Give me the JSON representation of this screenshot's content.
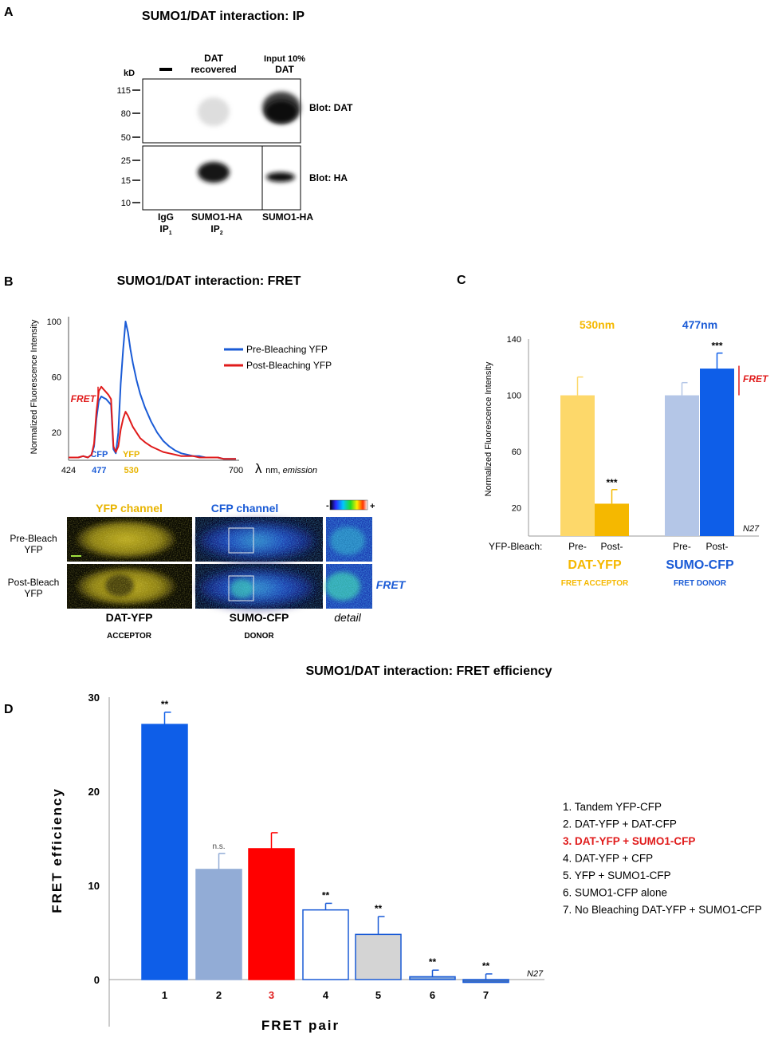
{
  "panelA": {
    "letter": "A",
    "title": "SUMO1/DAT interaction: IP",
    "kd_label": "kD",
    "dash_label": "—",
    "col_headers": [
      {
        "lines": [
          "DAT",
          "recovered"
        ]
      },
      {
        "lines": [
          "Input 10%",
          "DAT"
        ]
      }
    ],
    "top_ladder": [
      "115",
      "80",
      "50"
    ],
    "bottom_ladder": [
      "25",
      "15",
      "10"
    ],
    "blot_labels": [
      "Blot: DAT",
      "Blot: HA"
    ],
    "lane_labels": [
      {
        "line1": "IgG",
        "line2": "IP",
        "sub": "1"
      },
      {
        "line1": "SUMO1-HA",
        "line2": "IP",
        "sub": "2"
      },
      {
        "line1": "SUMO1-HA",
        "line2": "",
        "sub": ""
      }
    ]
  },
  "panelB": {
    "letter": "B",
    "title": "SUMO1/DAT interaction: FRET",
    "chart_data": {
      "type": "line",
      "ylabel": "Normalized Fluorescence Intensity",
      "xlabel_symbol": "λ",
      "xlabel_unit": "nm,",
      "xlabel_emph": "emission",
      "y_ticks": [
        "100",
        "60",
        "20"
      ],
      "x_ticks": [
        "424",
        "700"
      ],
      "marker_labels": [
        {
          "name": "CFP",
          "value": "477",
          "color": "#1a5bd6"
        },
        {
          "name": "YFP",
          "value": "530",
          "color": "#e8b400"
        }
      ],
      "annotation": "FRET",
      "x": [
        424,
        432,
        440,
        448,
        456,
        462,
        466,
        470,
        474,
        478,
        482,
        486,
        490,
        494,
        498,
        502,
        506,
        510,
        514,
        518,
        522,
        526,
        530,
        536,
        542,
        550,
        560,
        570,
        580,
        590,
        600,
        610,
        620,
        630,
        640,
        650,
        660,
        670,
        680,
        690,
        700
      ],
      "series": [
        {
          "name": "Pre-Bleaching YFP",
          "color": "#1a5bd6",
          "values": [
            2,
            2,
            2,
            3,
            2,
            4,
            10,
            30,
            43,
            46,
            45,
            44,
            42,
            40,
            8,
            5,
            20,
            55,
            80,
            100,
            92,
            80,
            70,
            58,
            48,
            38,
            28,
            20,
            14,
            10,
            7,
            5,
            4,
            3,
            3,
            2,
            2,
            2,
            1,
            1,
            1
          ]
        },
        {
          "name": "Post-Bleaching YFP",
          "color": "#e01b1b",
          "values": [
            2,
            2,
            2,
            3,
            2,
            4,
            12,
            35,
            50,
            53,
            51,
            49,
            47,
            44,
            10,
            6,
            10,
            22,
            30,
            35,
            32,
            28,
            24,
            20,
            16,
            13,
            10,
            8,
            6,
            5,
            4,
            3,
            3,
            3,
            2,
            2,
            2,
            2,
            1,
            1,
            1
          ]
        }
      ]
    },
    "channels": {
      "yfp_title": "YFP channel",
      "cfp_title": "CFP channel",
      "scale_minus": "-",
      "scale_plus": "+",
      "rows": [
        {
          "line1": "Pre-Bleach",
          "line2": "YFP"
        },
        {
          "line1": "Post-Bleach",
          "line2": "YFP"
        }
      ],
      "fret_label": "FRET",
      "captions": [
        {
          "main": "DAT-YFP",
          "sub": "ACCEPTOR"
        },
        {
          "main": "SUMO-CFP",
          "sub": "DONOR"
        },
        {
          "main": "detail",
          "sub": ""
        }
      ]
    }
  },
  "panelC": {
    "letter": "C",
    "chart_data": {
      "type": "bar",
      "ylabel": "Normalized Fluorescence Intensity",
      "ylim": [
        0,
        140
      ],
      "y_ticks": [
        20,
        60,
        100,
        140
      ],
      "wavelengths": [
        {
          "label": "530nm",
          "color": "#f5b800"
        },
        {
          "label": "477nm",
          "color": "#1a5bd6"
        }
      ],
      "bleach_label": "YFP-Bleach:",
      "categories": [
        "Pre-",
        "Post-",
        "Pre-",
        "Post-"
      ],
      "values": [
        100,
        23,
        100,
        119
      ],
      "errors": [
        13,
        10,
        9,
        11
      ],
      "colors": [
        "#fdd86a",
        "#f5b800",
        "#b4c6e7",
        "#0e5ee8"
      ],
      "error_colors": [
        "#fdd86a",
        "#f5b800",
        "#b4c6e7",
        "#0e5ee8"
      ],
      "significance": [
        "",
        "***",
        "",
        "***"
      ],
      "groups": [
        {
          "name": "DAT-YFP",
          "sub": "FRET ACCEPTOR",
          "color": "#f5b800"
        },
        {
          "name": "SUMO-CFP",
          "sub": "FRET DONOR",
          "color": "#1a5bd6"
        }
      ],
      "annotation": "FRET",
      "n_label": "N27"
    }
  },
  "panelD": {
    "letter": "D",
    "chart_data": {
      "type": "bar",
      "title": "SUMO1/DAT interaction: FRET efficiency",
      "xlabel": "FRET pair",
      "ylabel": "FRET efficiency",
      "ylim": [
        -5,
        30
      ],
      "y_ticks": [
        0,
        10,
        20,
        30
      ],
      "categories": [
        "1",
        "2",
        "3",
        "4",
        "5",
        "6",
        "7"
      ],
      "category_colors": [
        "#000000",
        "#000000",
        "#e01b1b",
        "#000000",
        "#000000",
        "#000000",
        "#000000"
      ],
      "values": [
        27.1,
        11.7,
        13.9,
        7.4,
        4.8,
        0.3,
        -0.3
      ],
      "errors": [
        1.3,
        1.7,
        1.7,
        0.7,
        1.9,
        0.7,
        0.6
      ],
      "fills": [
        "#0e5ee8",
        "#92acd6",
        "#ff0000",
        "#ffffff",
        "#d4d4d4",
        "#7fa3d8",
        "#4372c0"
      ],
      "strokes": [
        "#0e5ee8",
        "#92acd6",
        "#ff0000",
        "#1a5bd6",
        "#1a5bd6",
        "#1a5bd6",
        "#1a5bd6"
      ],
      "significance": [
        "**",
        "n.s.",
        "",
        "**",
        "**",
        "**",
        "**"
      ],
      "n_label": "N27",
      "legend": [
        {
          "text": "1. Tandem YFP-CFP",
          "color": "#000000",
          "bold": false
        },
        {
          "text": "2. DAT-YFP + DAT-CFP",
          "color": "#000000",
          "bold": false
        },
        {
          "text": "3. DAT-YFP + SUMO1-CFP",
          "color": "#e01b1b",
          "bold": true
        },
        {
          "text": "4. DAT-YFP + CFP",
          "color": "#000000",
          "bold": false
        },
        {
          "text": "5. YFP + SUMO1-CFP",
          "color": "#000000",
          "bold": false
        },
        {
          "text": "6. SUMO1-CFP alone",
          "color": "#000000",
          "bold": false
        },
        {
          "text": "7. No Bleaching DAT-YFP + SUMO1-CFP",
          "color": "#000000",
          "bold": false
        }
      ]
    }
  }
}
